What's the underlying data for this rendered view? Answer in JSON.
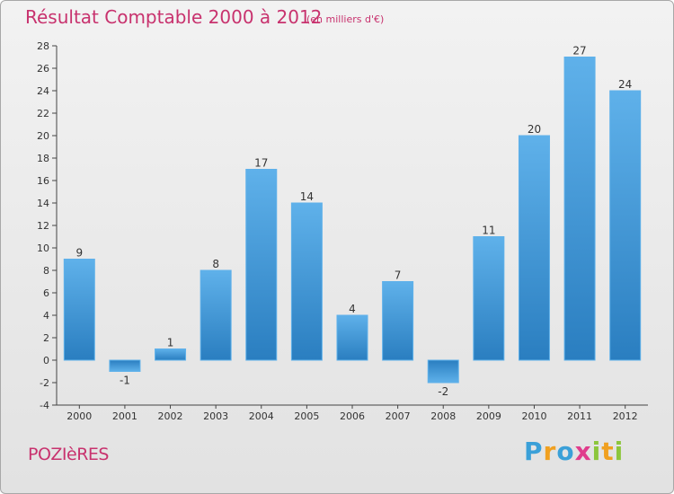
{
  "chart_data": {
    "type": "bar",
    "title": "Résultat Comptable 2000 à 2012",
    "subtitle": "(en milliers d'€)",
    "categories": [
      "2000",
      "2001",
      "2002",
      "2003",
      "2004",
      "2005",
      "2006",
      "2007",
      "2008",
      "2009",
      "2010",
      "2011",
      "2012"
    ],
    "values": [
      9,
      -1,
      1,
      8,
      17,
      14,
      4,
      7,
      -2,
      11,
      20,
      27,
      24
    ],
    "yticks": [
      -4,
      -2,
      0,
      2,
      4,
      6,
      8,
      10,
      12,
      14,
      16,
      18,
      20,
      22,
      24,
      26,
      28
    ],
    "ylim": [
      -4,
      28
    ],
    "xlabel": "",
    "ylabel": "",
    "grid": false,
    "bar_color": "#3b8fd6"
  },
  "footer": {
    "commune": "POZIèRES"
  },
  "logo": {
    "letters": [
      "P",
      "r",
      "o",
      "x",
      "i",
      "t",
      "i"
    ],
    "colors": [
      "#3aa0d8",
      "#f0a020",
      "#3aa0d8",
      "#e03c8c",
      "#8cc63c",
      "#f0a020",
      "#8cc63c"
    ]
  }
}
